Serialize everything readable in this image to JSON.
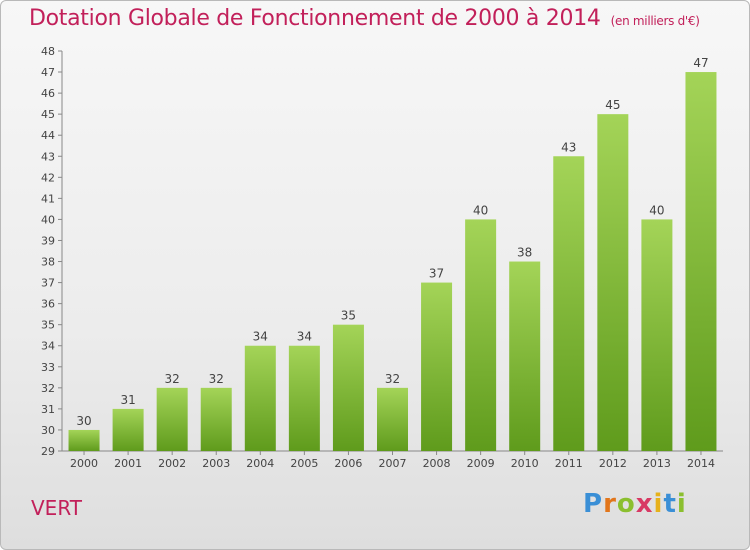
{
  "title": "Dotation Globale de Fonctionnement de 2000 à 2014",
  "unit": "(en milliers d'€)",
  "place_label": "VERT",
  "logo": {
    "text": "Proxiti",
    "letter_colors": [
      "#3a8fd6",
      "#e2761b",
      "#8bbf2f",
      "#d83a64",
      "#e6b11b",
      "#3a8fd6",
      "#8bbf2f"
    ]
  },
  "colors": {
    "bar_top": "#a4d458",
    "bar_bottom": "#5f9b1c",
    "title": "#c2205a",
    "axis": "#888888",
    "label": "#444444"
  },
  "chart_data": {
    "type": "bar",
    "title": "Dotation Globale de Fonctionnement de 2000 à 2014",
    "xlabel": "",
    "ylabel": "",
    "categories": [
      "2000",
      "2001",
      "2002",
      "2003",
      "2004",
      "2005",
      "2006",
      "2007",
      "2008",
      "2009",
      "2010",
      "2011",
      "2012",
      "2013",
      "2014"
    ],
    "values": [
      30,
      31,
      32,
      32,
      34,
      34,
      35,
      32,
      37,
      40,
      38,
      43,
      45,
      40,
      47
    ],
    "ylim": [
      29,
      48
    ],
    "yticks": [
      29,
      30,
      31,
      32,
      33,
      34,
      35,
      36,
      37,
      38,
      39,
      40,
      41,
      42,
      43,
      44,
      45,
      46,
      47,
      48
    ],
    "grid": false,
    "legend": "none"
  }
}
